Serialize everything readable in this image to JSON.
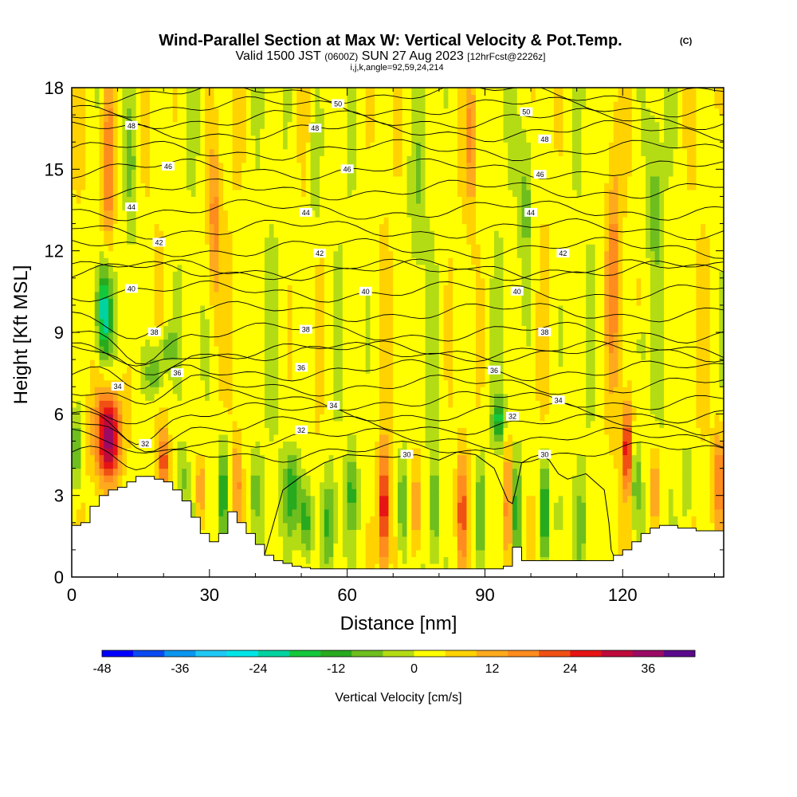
{
  "chart_data": {
    "type": "heatmap",
    "title": "Wind-Parallel Section at Max W: Vertical Velocity & Pot.Temp.",
    "copyright_mark": "(C)",
    "subtitle": {
      "valid": "Valid 1500 JST",
      "utc": "(0600Z)",
      "date": "SUN 27 Aug 2023",
      "forecast": "[12hrFcst@2226z]"
    },
    "indices": "i,j,k,angle=92,59,24,214",
    "xlabel": "Distance [nm]",
    "ylabel": "Height [Kft MSL]",
    "xlim": [
      0,
      142
    ],
    "ylim": [
      0,
      18
    ],
    "x_ticks": [
      0,
      30,
      60,
      90,
      120
    ],
    "y_ticks": [
      0,
      3,
      6,
      9,
      12,
      15,
      18
    ],
    "colorbar": {
      "label": "Vertical Velocity [cm/s]",
      "tick_values": [
        -48,
        -36,
        -24,
        -12,
        0,
        12,
        24,
        36
      ],
      "colors": [
        "#0000ff",
        "#0a4af2",
        "#0a96f0",
        "#1ec8f5",
        "#00e6e6",
        "#00d2a0",
        "#14c83c",
        "#28aa1e",
        "#6ebe1e",
        "#b4dc14",
        "#ffff00",
        "#ffd200",
        "#ffaa1e",
        "#ff8c1e",
        "#f05014",
        "#e61414",
        "#be0a3c",
        "#9b0a64",
        "#5a0a8c"
      ]
    },
    "terrain_profile": [
      [
        0,
        1.9
      ],
      [
        2,
        2.0
      ],
      [
        4,
        2.6
      ],
      [
        6,
        3.0
      ],
      [
        8,
        3.2
      ],
      [
        10,
        3.3
      ],
      [
        12,
        3.5
      ],
      [
        14,
        3.7
      ],
      [
        16,
        3.7
      ],
      [
        18,
        3.6
      ],
      [
        20,
        3.5
      ],
      [
        22,
        3.2
      ],
      [
        24,
        2.8
      ],
      [
        26,
        2.2
      ],
      [
        28,
        1.6
      ],
      [
        30,
        1.3
      ],
      [
        32,
        1.6
      ],
      [
        34,
        2.4
      ],
      [
        36,
        2.0
      ],
      [
        38,
        1.6
      ],
      [
        40,
        1.2
      ],
      [
        42,
        0.8
      ],
      [
        44,
        0.6
      ],
      [
        46,
        0.5
      ],
      [
        48,
        0.4
      ],
      [
        50,
        0.35
      ],
      [
        52,
        0.3
      ],
      [
        60,
        0.3
      ],
      [
        70,
        0.3
      ],
      [
        80,
        0.3
      ],
      [
        90,
        0.3
      ],
      [
        94,
        0.4
      ],
      [
        96,
        1.1
      ],
      [
        98,
        0.6
      ],
      [
        104,
        0.6
      ],
      [
        110,
        0.6
      ],
      [
        116,
        0.6
      ],
      [
        118,
        0.8
      ],
      [
        120,
        1.0
      ],
      [
        122,
        1.3
      ],
      [
        124,
        1.6
      ],
      [
        126,
        1.8
      ],
      [
        128,
        1.9
      ],
      [
        130,
        1.9
      ],
      [
        132,
        1.8
      ],
      [
        136,
        1.7
      ],
      [
        142,
        1.7
      ]
    ],
    "theta_contour_labels": [
      {
        "text": "30",
        "x": 73,
        "y": 4.5
      },
      {
        "text": "30",
        "x": 103,
        "y": 4.5
      },
      {
        "text": "32",
        "x": 16,
        "y": 4.9
      },
      {
        "text": "32",
        "x": 50,
        "y": 5.4
      },
      {
        "text": "32",
        "x": 96,
        "y": 5.9
      },
      {
        "text": "34",
        "x": 10,
        "y": 7.0
      },
      {
        "text": "34",
        "x": 57,
        "y": 6.3
      },
      {
        "text": "34",
        "x": 106,
        "y": 6.5
      },
      {
        "text": "36",
        "x": 23,
        "y": 7.5
      },
      {
        "text": "36",
        "x": 50,
        "y": 7.7
      },
      {
        "text": "36",
        "x": 92,
        "y": 7.6
      },
      {
        "text": "38",
        "x": 18,
        "y": 9.0
      },
      {
        "text": "38",
        "x": 51,
        "y": 9.1
      },
      {
        "text": "38",
        "x": 103,
        "y": 9.0
      },
      {
        "text": "40",
        "x": 13,
        "y": 10.6
      },
      {
        "text": "40",
        "x": 64,
        "y": 10.5
      },
      {
        "text": "40",
        "x": 97,
        "y": 10.5
      },
      {
        "text": "42",
        "x": 19,
        "y": 12.3
      },
      {
        "text": "42",
        "x": 54,
        "y": 11.9
      },
      {
        "text": "42",
        "x": 107,
        "y": 11.9
      },
      {
        "text": "44",
        "x": 13,
        "y": 13.6
      },
      {
        "text": "44",
        "x": 51,
        "y": 13.4
      },
      {
        "text": "44",
        "x": 100,
        "y": 13.4
      },
      {
        "text": "46",
        "x": 21,
        "y": 15.1
      },
      {
        "text": "46",
        "x": 60,
        "y": 15.0
      },
      {
        "text": "46",
        "x": 102,
        "y": 14.8
      },
      {
        "text": "48",
        "x": 13,
        "y": 16.6
      },
      {
        "text": "48",
        "x": 53,
        "y": 16.5
      },
      {
        "text": "48",
        "x": 103,
        "y": 16.1
      },
      {
        "text": "50",
        "x": 58,
        "y": 17.4
      },
      {
        "text": "50",
        "x": 99,
        "y": 17.1
      }
    ],
    "theta_30_contour": [
      [
        42,
        0.8
      ],
      [
        44,
        2.0
      ],
      [
        46,
        3.2
      ],
      [
        50,
        3.7
      ],
      [
        55,
        4.2
      ],
      [
        60,
        4.5
      ],
      [
        65,
        4.45
      ],
      [
        70,
        4.4
      ],
      [
        75,
        4.5
      ],
      [
        80,
        4.3
      ],
      [
        84,
        4.6
      ],
      [
        88,
        4.5
      ],
      [
        92,
        4.0
      ],
      [
        94,
        3.2
      ],
      [
        95,
        2.8
      ],
      [
        96,
        2.7
      ],
      [
        97,
        3.4
      ],
      [
        98,
        4.2
      ],
      [
        100,
        4.4
      ],
      [
        102,
        4.5
      ],
      [
        104,
        4.3
      ],
      [
        106,
        3.8
      ],
      [
        108,
        3.6
      ],
      [
        110,
        3.7
      ],
      [
        112,
        3.8
      ],
      [
        114,
        3.5
      ],
      [
        116,
        3.2
      ],
      [
        117,
        2.0
      ],
      [
        117.5,
        1.0
      ],
      [
        118,
        0.8
      ]
    ],
    "w_features": [
      {
        "x": 8,
        "y": 5.2,
        "w": 36,
        "rx": 2.8,
        "ry": 1.8
      },
      {
        "x": 7,
        "y": 9.8,
        "w": -26,
        "rx": 1.6,
        "ry": 1.8
      },
      {
        "x": 8,
        "y": 15,
        "w": 18,
        "rx": 1.5,
        "ry": 3.5
      },
      {
        "x": 13,
        "y": 15,
        "w": -8,
        "rx": 1.2,
        "ry": 3
      },
      {
        "x": 18,
        "y": 7.5,
        "w": -14,
        "rx": 2,
        "ry": 1
      },
      {
        "x": 21,
        "y": 8.5,
        "w": -10,
        "rx": 2,
        "ry": 0.8
      },
      {
        "x": 20,
        "y": 4.2,
        "w": 20,
        "rx": 1.2,
        "ry": 1.2
      },
      {
        "x": 24,
        "y": 3.6,
        "w": -8,
        "rx": 1,
        "ry": 1
      },
      {
        "x": 28,
        "y": 3.3,
        "w": 14,
        "rx": 1,
        "ry": 1.2
      },
      {
        "x": 33,
        "y": 3.2,
        "w": -18,
        "rx": 1,
        "ry": 2
      },
      {
        "x": 31,
        "y": 13,
        "w": 14,
        "rx": 1.4,
        "ry": 3
      },
      {
        "x": 36,
        "y": 3.5,
        "w": 12,
        "rx": 1,
        "ry": 1.5
      },
      {
        "x": 40,
        "y": 3.2,
        "w": -8,
        "rx": 1.2,
        "ry": 1.5
      },
      {
        "x": 48,
        "y": 3.2,
        "w": -16,
        "rx": 2,
        "ry": 1.5
      },
      {
        "x": 51,
        "y": 2.0,
        "w": -18,
        "rx": 1.4,
        "ry": 1.5
      },
      {
        "x": 56,
        "y": 2.0,
        "w": -14,
        "rx": 1.5,
        "ry": 1.8
      },
      {
        "x": 61,
        "y": 3.2,
        "w": -12,
        "rx": 1,
        "ry": 1.5
      },
      {
        "x": 68,
        "y": 2.5,
        "w": 28,
        "rx": 1,
        "ry": 2.2
      },
      {
        "x": 72,
        "y": 2.5,
        "w": -16,
        "rx": 0.9,
        "ry": 2
      },
      {
        "x": 75,
        "y": 2.5,
        "w": 18,
        "rx": 0.8,
        "ry": 2
      },
      {
        "x": 79,
        "y": 2.5,
        "w": -12,
        "rx": 1,
        "ry": 2
      },
      {
        "x": 85,
        "y": 2.4,
        "w": 18,
        "rx": 1,
        "ry": 2
      },
      {
        "x": 89,
        "y": 2.5,
        "w": -12,
        "rx": 1,
        "ry": 2
      },
      {
        "x": 93,
        "y": 5.8,
        "w": -16,
        "rx": 1.5,
        "ry": 0.8
      },
      {
        "x": 95,
        "y": 2.5,
        "w": 24,
        "rx": 0.7,
        "ry": 2.5
      },
      {
        "x": 97,
        "y": 2.5,
        "w": -20,
        "rx": 0.6,
        "ry": 2
      },
      {
        "x": 103,
        "y": 2.5,
        "w": -22,
        "rx": 0.8,
        "ry": 2
      },
      {
        "x": 106,
        "y": 2.2,
        "w": -8,
        "rx": 0.8,
        "ry": 1.5
      },
      {
        "x": 111,
        "y": 2.0,
        "w": -10,
        "rx": 0.8,
        "ry": 1.5
      },
      {
        "x": 121,
        "y": 4.8,
        "w": 26,
        "rx": 1,
        "ry": 1.6
      },
      {
        "x": 123,
        "y": 3.5,
        "w": -12,
        "rx": 1,
        "ry": 1.5
      },
      {
        "x": 124,
        "y": 8.5,
        "w": -8,
        "rx": 1,
        "ry": 1
      },
      {
        "x": 127,
        "y": 3.2,
        "w": 14,
        "rx": 1,
        "ry": 1.5
      },
      {
        "x": 134,
        "y": 3.4,
        "w": -10,
        "rx": 1,
        "ry": 1.5
      },
      {
        "x": 141,
        "y": 3.6,
        "w": 18,
        "rx": 1.2,
        "ry": 1.8
      },
      {
        "x": 1,
        "y": 4.6,
        "w": -14,
        "rx": 1.2,
        "ry": 1.5
      },
      {
        "x": 53,
        "y": 15,
        "w": -8,
        "rx": 1.2,
        "ry": 2.5
      },
      {
        "x": 75,
        "y": 14,
        "w": -6,
        "rx": 1.5,
        "ry": 3
      },
      {
        "x": 99,
        "y": 14,
        "w": -10,
        "rx": 1.5,
        "ry": 3
      },
      {
        "x": 118,
        "y": 11,
        "w": 14,
        "rx": 1.5,
        "ry": 4
      },
      {
        "x": 127,
        "y": 14,
        "w": -8,
        "rx": 1.5,
        "ry": 3
      },
      {
        "x": 87,
        "y": 16,
        "w": 12,
        "rx": 1.2,
        "ry": 2.5
      }
    ]
  }
}
